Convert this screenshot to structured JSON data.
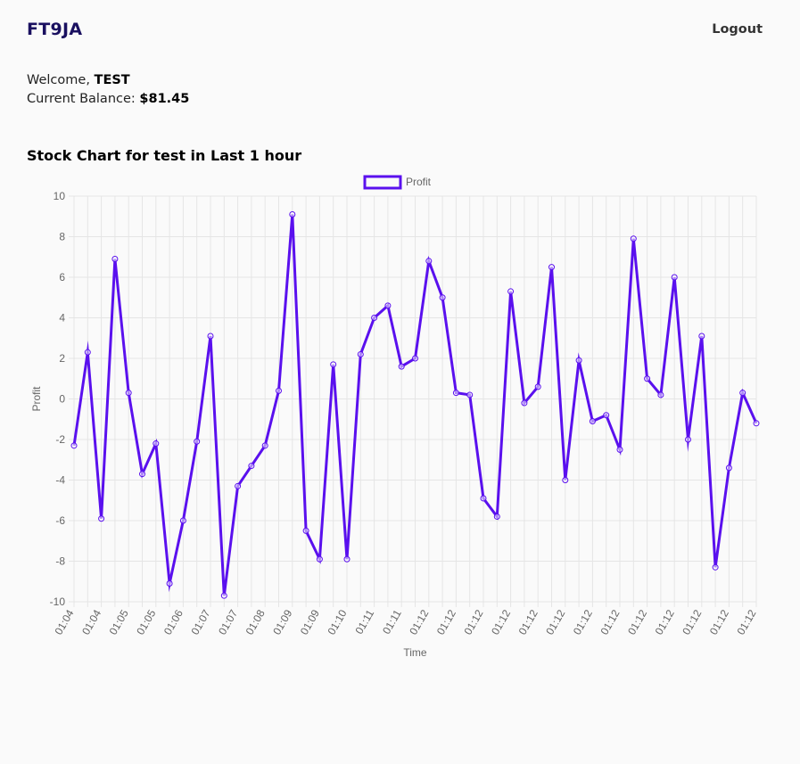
{
  "header": {
    "brand": "FT9JA",
    "logout_label": "Logout"
  },
  "account": {
    "welcome_prefix": "Welcome, ",
    "username": "TEST",
    "balance_prefix": "Current Balance: ",
    "balance": "$81.45"
  },
  "chart_title": "Stock Chart for test in Last 1 hour",
  "colors": {
    "line": "#5a10ee",
    "point_fill": "#ffffff",
    "grid": "#e5e5e5",
    "brand": "#1a1060"
  },
  "chart_data": {
    "type": "line",
    "title": "",
    "xlabel": "Time",
    "ylabel": "Profit",
    "ylim": [
      -10,
      10
    ],
    "yticks": [
      10,
      8,
      6,
      4,
      2,
      0,
      -2,
      -4,
      -6,
      -8,
      -10
    ],
    "ytick_labels": [
      "10",
      "8",
      "6",
      "4",
      "2",
      "0",
      "-2",
      "-4",
      "-6",
      "-8",
      "-10"
    ],
    "legend": {
      "position": "top-center"
    },
    "grid": true,
    "x": [
      "01:04",
      "01:04",
      "01:04",
      "01:04",
      "01:05",
      "01:05",
      "01:05",
      "01:06",
      "01:06",
      "01:06",
      "01:07",
      "01:07",
      "01:07",
      "01:08",
      "01:08",
      "01:08",
      "01:09",
      "01:09",
      "01:09",
      "01:10",
      "01:10",
      "01:10",
      "01:11",
      "01:11",
      "01:11",
      "01:12",
      "01:12",
      "01:12",
      "01:12",
      "01:12",
      "01:12",
      "01:12",
      "01:12",
      "01:12",
      "01:12",
      "01:12",
      "01:12",
      "01:12",
      "01:12",
      "01:12",
      "01:12",
      "01:12",
      "01:12",
      "01:12",
      "01:12",
      "01:12",
      "01:12",
      "01:12",
      "01:12",
      "01:12",
      "01:12"
    ],
    "series": [
      {
        "name": "Profit",
        "values": [
          -2.3,
          2.3,
          -5.9,
          6.9,
          0.3,
          -3.7,
          -2.2,
          -9.1,
          -6.0,
          -2.1,
          3.1,
          -9.7,
          -4.3,
          -3.3,
          -2.3,
          0.4,
          9.1,
          -6.5,
          -7.9,
          1.7,
          -7.9,
          2.2,
          4.0,
          4.6,
          1.6,
          2.0,
          6.8,
          5.0,
          0.3,
          0.2,
          -4.9,
          -5.8,
          5.3,
          -0.2,
          0.6,
          6.5,
          -4.0,
          1.9,
          -1.1,
          -0.8,
          -2.5,
          7.9,
          1.0,
          0.2,
          6.0,
          -2.0,
          3.1,
          -8.3,
          -3.4,
          0.3,
          -1.2
        ]
      }
    ]
  }
}
